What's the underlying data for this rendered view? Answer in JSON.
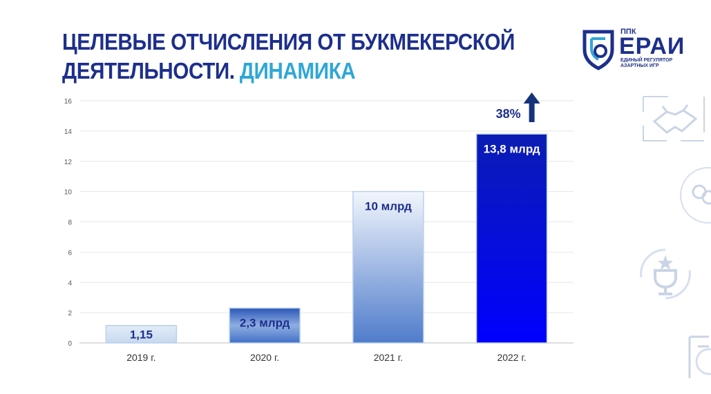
{
  "header": {
    "title_line1": "ЦЕЛЕВЫЕ ОТЧИСЛЕНИЯ ОТ БУКМЕКЕРСКОЙ",
    "title_line2": "ДЕЯТЕЛЬНОСТИ.",
    "title_accent": "ДИНАМИКА"
  },
  "logo": {
    "ppk": "ППК",
    "name": "ЕРАИ",
    "sub_line1": "ЕДИНЫЙ РЕГУЛЯТОР",
    "sub_line2": "АЗАРТНЫХ ИГР"
  },
  "colors": {
    "title": "#1d2f8c",
    "accent": "#2fa7d6",
    "bar_light": "#d6e4f5",
    "bar_mid": "#5b86cf",
    "bar_dark": "#0a12d8"
  },
  "icons": [
    "handshake-icon",
    "balls-icon",
    "trophy-icon"
  ],
  "chart_data": {
    "type": "bar",
    "categories": [
      "2019 г.",
      "2020 г.",
      "2021 г.",
      "2022 г."
    ],
    "values": [
      1.15,
      2.3,
      10,
      13.8
    ],
    "data_labels": [
      "1,15",
      "2,3 млрд",
      "10 млрд",
      "13,8 млрд"
    ],
    "ylim": [
      0,
      16
    ],
    "yticks": [
      "0",
      "2",
      "4",
      "6",
      "8",
      "10",
      "12",
      "14",
      "16"
    ],
    "grid": true,
    "annotation": {
      "text": "38%",
      "direction": "up",
      "category": "2022 г."
    }
  }
}
